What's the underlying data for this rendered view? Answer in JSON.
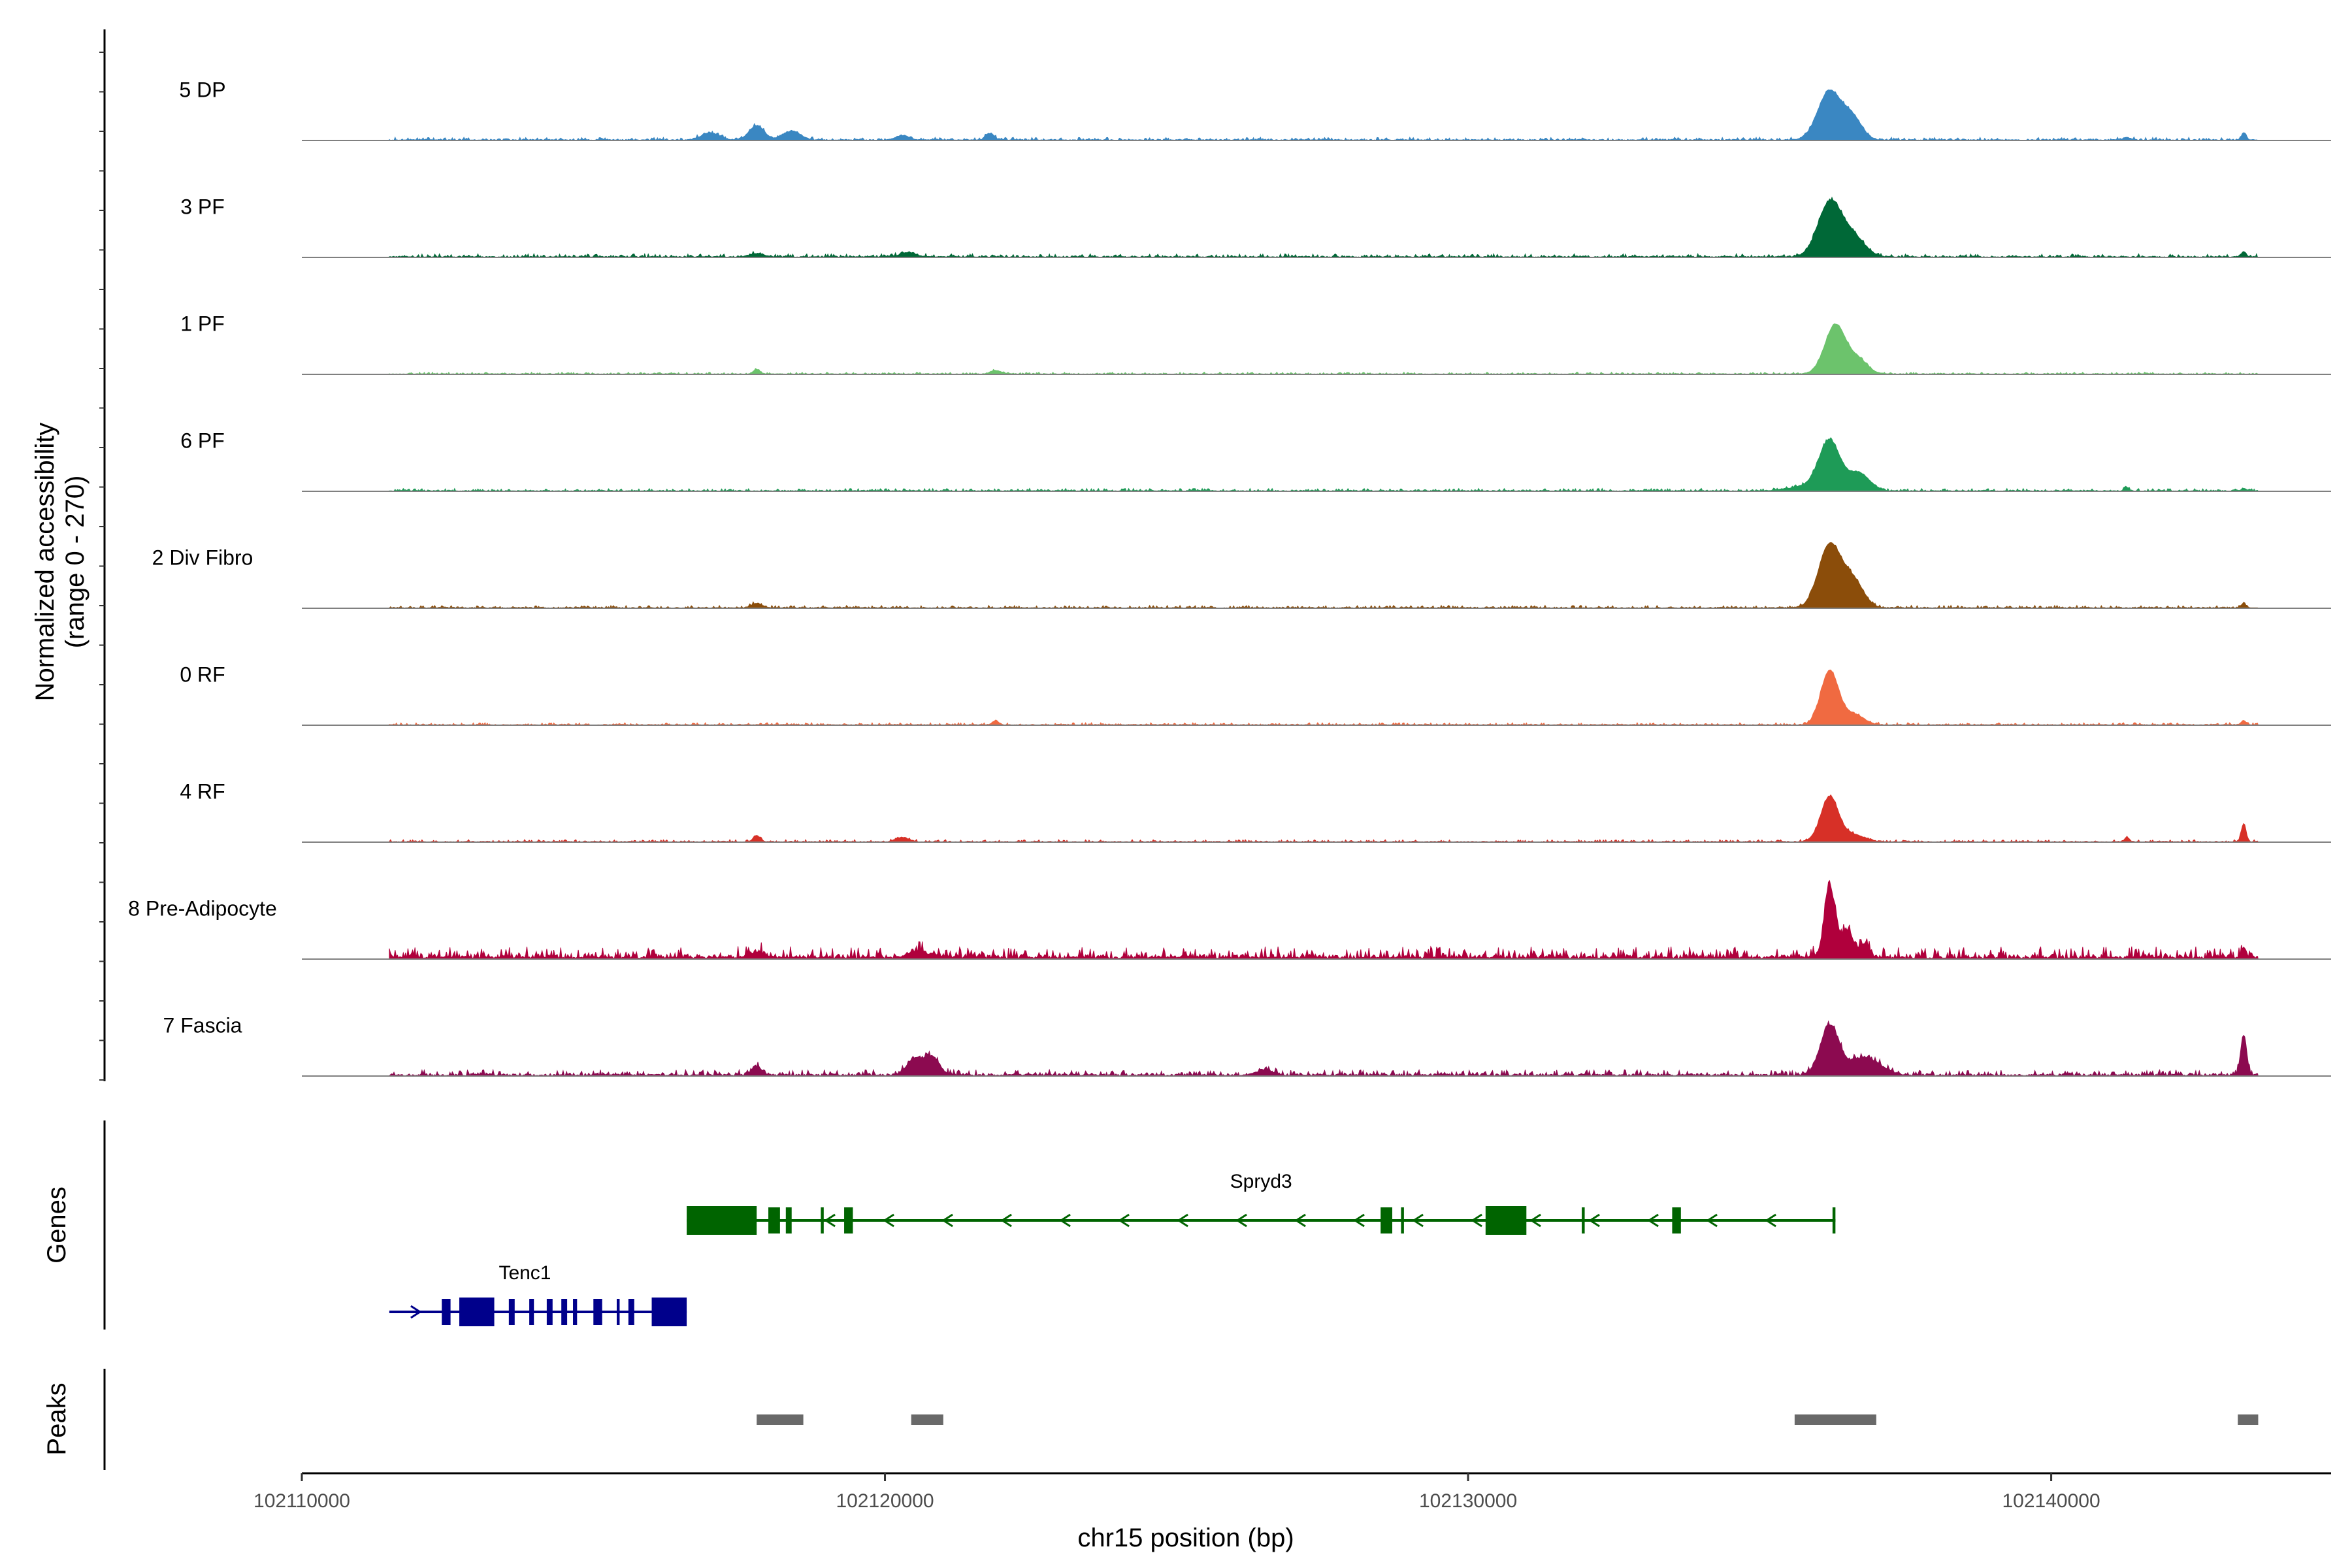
{
  "chart_data": {
    "type": "area",
    "y_axis_title": [
      "Normalized accessibility",
      "(range 0 - 270)"
    ],
    "x_axis_title": "chr15 position (bp)",
    "x_range": [
      102110000,
      102144800
    ],
    "x_ticks": [
      102110000,
      102120000,
      102130000,
      102140000
    ],
    "x_tick_labels": [
      "102110000",
      "102120000",
      "102130000",
      "102140000"
    ],
    "y_range": [
      0,
      270
    ],
    "tracks": [
      {
        "name": "5 DP",
        "color": "#3a87c2",
        "noise": [
          0.018,
          12,
          1
        ],
        "peaks": [
          [
            102136200,
            200,
            0.55
          ],
          [
            102136600,
            160,
            0.23
          ],
          [
            102117800,
            130,
            0.16
          ],
          [
            102118400,
            150,
            0.1
          ],
          [
            102117000,
            150,
            0.08
          ],
          [
            102121800,
            70,
            0.07
          ],
          [
            102120300,
            120,
            0.05
          ],
          [
            102143300,
            40,
            0.08
          ],
          [
            102141300,
            60,
            0.03
          ]
        ]
      },
      {
        "name": "3 PF",
        "color": "#006837",
        "noise": [
          0.02,
          13,
          2
        ],
        "peaks": [
          [
            102136200,
            200,
            0.6
          ],
          [
            102136600,
            200,
            0.22
          ],
          [
            102117800,
            120,
            0.04
          ],
          [
            102120400,
            130,
            0.05
          ],
          [
            102143300,
            40,
            0.06
          ]
        ]
      },
      {
        "name": "1 PF",
        "color": "#6cc36c",
        "noise": [
          0.012,
          12,
          3
        ],
        "peaks": [
          [
            102136300,
            180,
            0.55
          ],
          [
            102136700,
            160,
            0.15
          ],
          [
            102117800,
            60,
            0.05
          ],
          [
            102121900,
            90,
            0.04
          ]
        ]
      },
      {
        "name": "6 PF",
        "color": "#1e9b57",
        "noise": [
          0.016,
          14,
          4
        ],
        "peaks": [
          [
            102136200,
            180,
            0.55
          ],
          [
            102136700,
            180,
            0.2
          ],
          [
            102135800,
            300,
            0.05
          ],
          [
            102141300,
            40,
            0.03
          ],
          [
            102143300,
            40,
            0.03
          ]
        ]
      },
      {
        "name": "2 Div Fibro",
        "color": "#8b4d0a",
        "noise": [
          0.016,
          12,
          5
        ],
        "peaks": [
          [
            102136200,
            190,
            0.7
          ],
          [
            102136600,
            180,
            0.3
          ],
          [
            102117800,
            90,
            0.05
          ],
          [
            102143300,
            40,
            0.05
          ]
        ]
      },
      {
        "name": "0 RF",
        "color": "#f06a41",
        "noise": [
          0.014,
          11,
          6
        ],
        "peaks": [
          [
            102136200,
            150,
            0.6
          ],
          [
            102136600,
            180,
            0.12
          ],
          [
            102121900,
            50,
            0.05
          ],
          [
            102143300,
            40,
            0.05
          ]
        ]
      },
      {
        "name": "4 RF",
        "color": "#d73027",
        "noise": [
          0.014,
          12,
          7
        ],
        "peaks": [
          [
            102136200,
            150,
            0.5
          ],
          [
            102136600,
            200,
            0.08
          ],
          [
            102117800,
            60,
            0.07
          ],
          [
            102120300,
            100,
            0.05
          ],
          [
            102141300,
            40,
            0.05
          ],
          [
            102143300,
            40,
            0.2
          ]
        ]
      },
      {
        "name": "8 Pre-Adipocyte",
        "color": "#b0003c",
        "noise": [
          0.07,
          10,
          8
        ],
        "peaks": [
          [
            102136200,
            90,
            0.8
          ],
          [
            102136500,
            110,
            0.3
          ],
          [
            102136800,
            80,
            0.15
          ],
          [
            102117800,
            150,
            0.06
          ],
          [
            102120600,
            200,
            0.06
          ],
          [
            102143300,
            40,
            0.1
          ]
        ]
      },
      {
        "name": "7 Fascia",
        "color": "#8c0a50",
        "noise": [
          0.035,
          14,
          9
        ],
        "peaks": [
          [
            102136200,
            160,
            0.55
          ],
          [
            102136800,
            260,
            0.2
          ],
          [
            102120500,
            130,
            0.18
          ],
          [
            102120800,
            130,
            0.2
          ],
          [
            102117800,
            90,
            0.1
          ],
          [
            102126500,
            130,
            0.06
          ],
          [
            102143300,
            50,
            0.45
          ]
        ]
      }
    ],
    "genes": {
      "title": "Genes",
      "items": [
        {
          "name": "Spryd3",
          "strand": "-",
          "color": "#006400",
          "start": 102116600,
          "end": 102136300,
          "exons": [
            [
              102116600,
              102117800
            ],
            [
              102118000,
              102118200
            ],
            [
              102118300,
              102118400
            ],
            [
              102118900,
              102118950
            ],
            [
              102119300,
              102119450
            ],
            [
              102128500,
              102128700
            ],
            [
              102128850,
              102128900
            ],
            [
              102130300,
              102131000
            ],
            [
              102131950,
              102132000
            ],
            [
              102133500,
              102133650
            ],
            [
              102136250,
              102136300
            ]
          ]
        },
        {
          "name": "Tenc1",
          "strand": "+",
          "color": "#00008b",
          "start": 102111500,
          "end": 102116600,
          "exons": [
            [
              102112400,
              102112550
            ],
            [
              102112700,
              102113300
            ],
            [
              102113550,
              102113650
            ],
            [
              102113900,
              102113980
            ],
            [
              102114200,
              102114300
            ],
            [
              102114450,
              102114550
            ],
            [
              102114650,
              102114720
            ],
            [
              102115000,
              102115150
            ],
            [
              102115400,
              102115450
            ],
            [
              102115600,
              102115700
            ],
            [
              102116000,
              102116600
            ]
          ]
        }
      ]
    },
    "peaks": {
      "title": "Peaks",
      "color": "#696969",
      "regions": [
        [
          102117800,
          102118600
        ],
        [
          102120450,
          102121000
        ],
        [
          102135600,
          102137000
        ],
        [
          102143200,
          102143550
        ]
      ]
    }
  }
}
